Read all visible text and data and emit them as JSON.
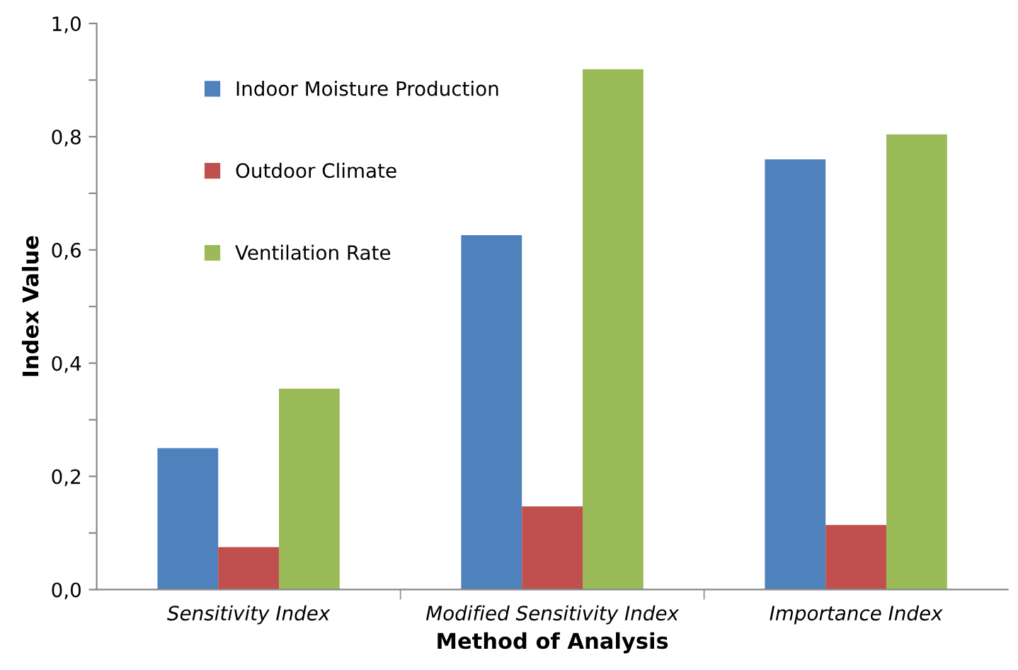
{
  "chart_data": {
    "type": "bar",
    "xlabel": "Method of Analysis",
    "ylabel": "Index Value",
    "categories": [
      "Sensitivity Index",
      "Modified Sensitivity Index",
      "Importance Index"
    ],
    "series": [
      {
        "name": "Indoor Moisture Production",
        "color": "#4f81bd",
        "values": [
          0.25,
          0.626,
          0.76
        ]
      },
      {
        "name": "Outdoor Climate",
        "color": "#c0504d",
        "values": [
          0.075,
          0.147,
          0.114
        ]
      },
      {
        "name": "Ventilation Rate",
        "color": "#9bbb59",
        "values": [
          0.355,
          0.919,
          0.804
        ]
      }
    ],
    "ylim": [
      0,
      1
    ],
    "yticks": [
      {
        "value": 0,
        "label": "0,0"
      },
      {
        "value": 0.1,
        "label": null
      },
      {
        "value": 0.2,
        "label": "0,2"
      },
      {
        "value": 0.3,
        "label": null
      },
      {
        "value": 0.4,
        "label": "0,4"
      },
      {
        "value": 0.5,
        "label": null
      },
      {
        "value": 0.6,
        "label": "0,6"
      },
      {
        "value": 0.7,
        "label": null
      },
      {
        "value": 0.8,
        "label": "0,8"
      },
      {
        "value": 0.9,
        "label": null
      },
      {
        "value": 1,
        "label": "1,0"
      }
    ],
    "grid": false,
    "legend": "top left"
  }
}
